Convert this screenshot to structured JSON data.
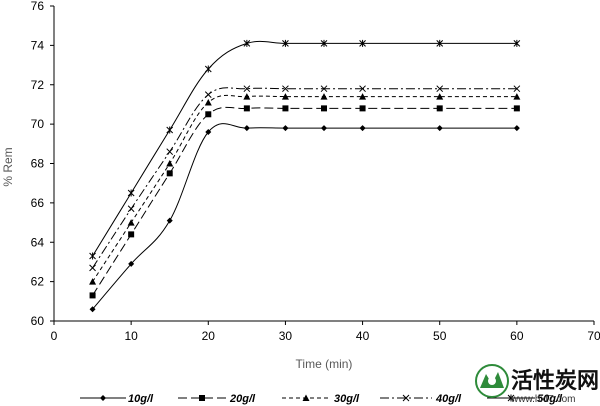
{
  "chart_data": {
    "type": "line",
    "xlabel": "Time (min)",
    "ylabel": "% Rem",
    "xlim": [
      0,
      70
    ],
    "ylim": [
      60,
      76
    ],
    "xticks": [
      0,
      10,
      20,
      30,
      40,
      50,
      60,
      70
    ],
    "yticks": [
      60,
      62,
      64,
      66,
      68,
      70,
      72,
      74,
      76
    ],
    "grid": false,
    "legend_position": "bottom",
    "x": [
      5,
      10,
      15,
      20,
      25,
      30,
      35,
      40,
      50,
      60
    ],
    "series": [
      {
        "name": "10g/l",
        "marker": "diamond",
        "dash": "solid",
        "values": [
          60.6,
          62.9,
          65.1,
          69.6,
          69.8,
          69.8,
          69.8,
          69.8,
          69.8,
          69.8
        ]
      },
      {
        "name": "20g/l",
        "marker": "square",
        "dash": "long-dash",
        "values": [
          61.3,
          64.4,
          67.5,
          70.5,
          70.8,
          70.8,
          70.8,
          70.8,
          70.8,
          70.8
        ]
      },
      {
        "name": "30g/l",
        "marker": "triangle",
        "dash": "short-dash",
        "values": [
          62.0,
          65.0,
          68.0,
          71.1,
          71.4,
          71.4,
          71.4,
          71.4,
          71.4,
          71.4
        ]
      },
      {
        "name": "40g/l",
        "marker": "x",
        "dash": "dash-dot",
        "values": [
          62.7,
          65.7,
          68.6,
          71.5,
          71.8,
          71.8,
          71.8,
          71.8,
          71.8,
          71.8
        ]
      },
      {
        "name": "50g/l",
        "marker": "star",
        "dash": "solid",
        "values": [
          63.3,
          66.5,
          69.7,
          72.8,
          74.1,
          74.1,
          74.1,
          74.1,
          74.1,
          74.1
        ]
      }
    ]
  },
  "watermark": {
    "text": "活性炭网",
    "url": "www.hxt7.com"
  }
}
